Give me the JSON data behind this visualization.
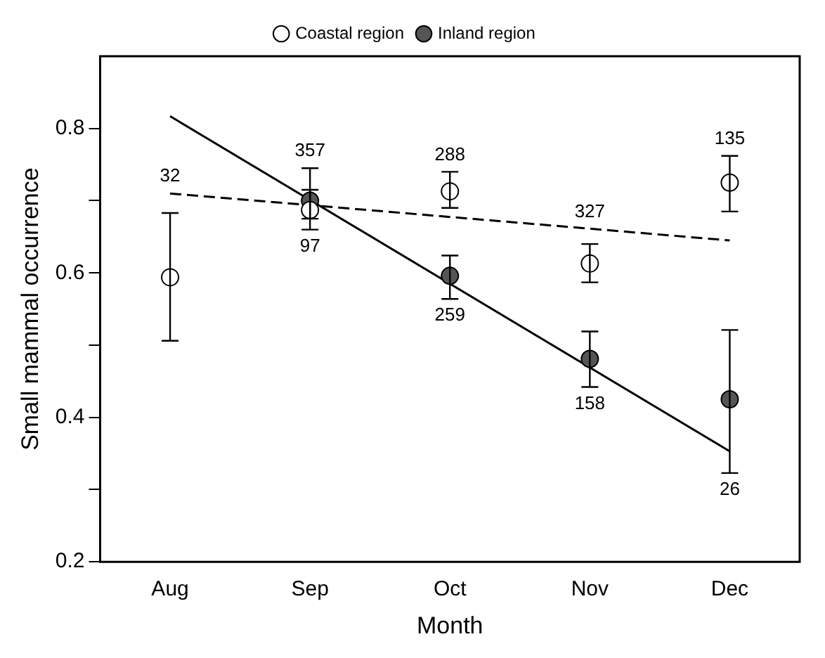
{
  "chart_data": {
    "type": "scatter",
    "xlabel": "Month",
    "ylabel": "Small mammal occurrence",
    "categories": [
      "Aug",
      "Sep",
      "Oct",
      "Nov",
      "Dec"
    ],
    "series": [
      {
        "name": "Coastal region",
        "color": "#ffffff",
        "marker": "circle",
        "values": [
          0.594,
          0.687,
          0.713,
          0.613,
          0.725
        ],
        "errors": [
          [
            0.506,
            0.683
          ],
          [
            0.66,
            0.715
          ],
          [
            0.69,
            0.74
          ],
          [
            0.587,
            0.64
          ],
          [
            0.685,
            0.762
          ]
        ]
      },
      {
        "name": "Inland region",
        "color": "#555555",
        "marker": "circle",
        "values": [
          null,
          0.7,
          0.596,
          0.481,
          0.425
        ],
        "errors": [
          null,
          [
            0.675,
            0.745
          ],
          [
            0.564,
            0.624
          ],
          [
            0.442,
            0.519
          ],
          [
            0.323,
            0.521
          ]
        ]
      },
      {
        "type": "line",
        "x": [
          "Aug",
          "Dec"
        ],
        "color": "#000000",
        "marker": "none",
        "line_style": "dashed",
        "values": [
          0.71,
          0.645
        ]
      },
      {
        "type": "line",
        "x": [
          "Aug",
          "Dec"
        ],
        "color": "#000000",
        "marker": "none",
        "line_style": "solid",
        "values": [
          0.817,
          0.353
        ]
      }
    ],
    "annotations": [
      {
        "text": "32",
        "x": "Aug",
        "y": 0.71
      },
      {
        "text": "357",
        "x": "Sep",
        "y": 0.7
      },
      {
        "text": "97",
        "x": "Sep",
        "y": 0.687
      },
      {
        "text": "288",
        "x": "Oct",
        "y": 0.713
      },
      {
        "text": "259",
        "x": "Oct",
        "y": 0.596
      },
      {
        "text": "327",
        "x": "Nov",
        "y": 0.661
      },
      {
        "text": "158",
        "x": "Nov",
        "y": 0.481
      },
      {
        "text": "135",
        "x": "Dec",
        "y": 0.725
      },
      {
        "text": "26",
        "x": "Dec",
        "y": 0.323
      }
    ],
    "ylim": [
      0.2,
      0.9
    ],
    "yticks": [
      0.2,
      {
        "value": 0.3,
        "label": null
      },
      0.4,
      {
        "value": 0.5,
        "label": null
      },
      0.6,
      {
        "value": 0.7,
        "label": null
      },
      0.8
    ],
    "grid": false,
    "legend": "top"
  }
}
